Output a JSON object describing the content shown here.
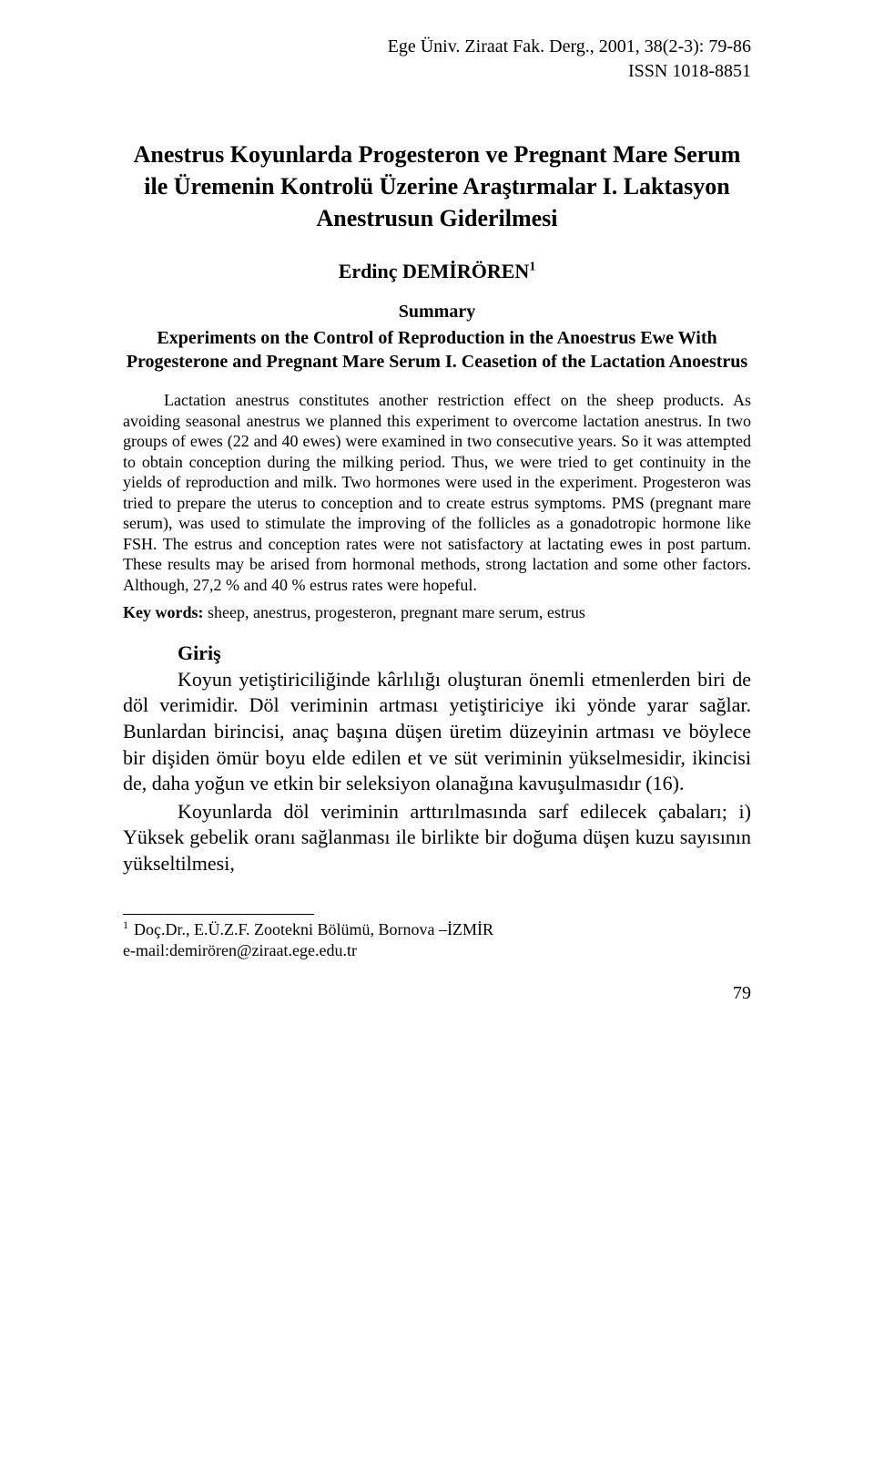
{
  "typography": {
    "font_family": "Times New Roman",
    "body_fontsize_pt": 11.5,
    "summary_fontsize_pt": 10,
    "title_fontsize_pt": 14,
    "text_color": "#000000",
    "background_color": "#ffffff"
  },
  "header": {
    "journal_line": "Ege Üniv. Ziraat Fak. Derg., 2001, 38(2-3): 79-86",
    "issn_line": "ISSN 1018-8851"
  },
  "title": {
    "line1": "Anestrus Koyunlarda Progesteron ve Pregnant Mare Serum ile Üremenin Kontrolü Üzerine Araştırmalar I. Laktasyon Anestrusun Giderilmesi"
  },
  "author": {
    "name": "Erdinç DEMİRÖREN",
    "sup": "1"
  },
  "summary": {
    "heading": "Summary",
    "subtitle": "Experiments on the Control of Reproduction in the Anoestrus Ewe With Progesterone and Pregnant Mare Serum I. Ceasetion of the Lactation Anoestrus",
    "paragraph": "Lactation anestrus constitutes another restriction effect on the sheep products. As avoiding seasonal anestrus we planned this experiment to overcome lactation anestrus. In two groups of ewes (22 and 40 ewes) were examined in two consecutive years. So it was attempted to obtain conception during the milking period. Thus, we were tried to get continuity in the yields of reproduction and milk. Two hormones were used in the experiment. Progesteron was tried to prepare the uterus to conception and to create estrus symptoms. PMS (pregnant mare serum), was used to stimulate the improving of the follicles as a gonadotropic hormone like FSH. The estrus and conception rates were not satisfactory at lactating ewes in post partum. These results may be arised from hormonal methods, strong lactation and some other factors. Although, 27,2 % and 40 % estrus rates were hopeful.",
    "keywords_label": "Key words:",
    "keywords_text": " sheep, anestrus, progesteron, pregnant mare serum, estrus"
  },
  "body": {
    "section_title": "Giriş",
    "p1": "Koyun yetiştiriciliğinde kârlılığı oluşturan önemli etmenlerden biri de döl verimidir. Döl veriminin artması yetiştiriciye iki yönde yarar sağlar. Bunlardan birincisi, anaç başına düşen üretim düzeyinin artması ve böylece bir dişiden ömür boyu elde edilen et ve süt veriminin yükselmesidir, ikincisi de, daha yoğun ve etkin bir seleksiyon olanağına kavuşulmasıdır (16).",
    "p2": "Koyunlarda döl veriminin arttırılmasında sarf edilecek çabaları; i) Yüksek gebelik oranı sağlanması ile birlikte bir doğuma düşen kuzu sayısının yükseltilmesi,"
  },
  "footnote": {
    "sup": "1",
    "line1": "Doç.Dr., E.Ü.Z.F. Zootekni Bölümü, Bornova –İZMİR",
    "line2": "e-mail:demirören@ziraat.ege.edu.tr"
  },
  "page_number": "79"
}
